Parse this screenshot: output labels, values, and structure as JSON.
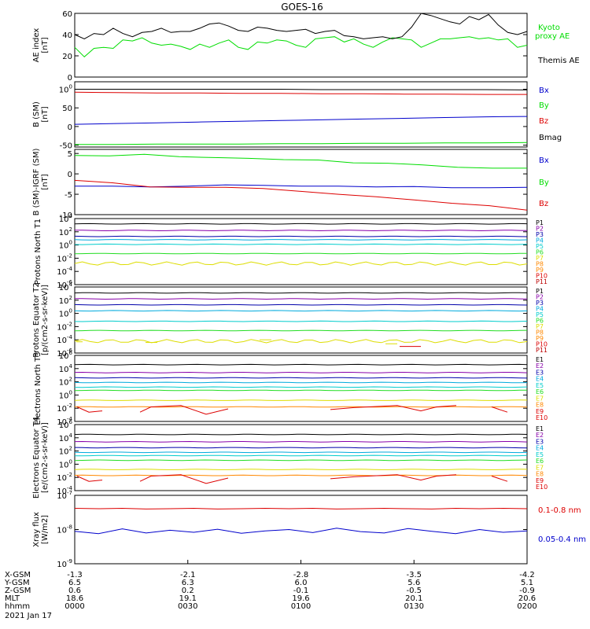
{
  "title": "GOES-16",
  "date": "2021 Jan 17",
  "colors": {
    "black": "#000000",
    "green": "#00dd00",
    "blue": "#0000cc",
    "red": "#dd0000",
    "purple": "#8800aa",
    "navy": "#0000aa",
    "cyan": "#00aadd",
    "aqua": "#00cccc",
    "lime": "#22dd22",
    "yellow": "#dddd00",
    "orange": "#ff8800",
    "darkred": "#bb0000",
    "pink": "#cc0066"
  },
  "chart_data": [
    {
      "type": "line",
      "id": "ae",
      "ylabel": "AE index [nT]",
      "ylim": [
        0,
        60
      ],
      "yticks": [
        "0",
        "20",
        "40",
        "60"
      ],
      "series": [
        {
          "name": "Kyoto proxy AE",
          "values": [
            28,
            19,
            27,
            28,
            27,
            35,
            34,
            37,
            32,
            30,
            31,
            29,
            26,
            31,
            28,
            32,
            35,
            28,
            26,
            33,
            32,
            35,
            34,
            30,
            28,
            36,
            37,
            38,
            33,
            36,
            31,
            28,
            33,
            37,
            36,
            35,
            28,
            32,
            36,
            36,
            37,
            38,
            36,
            37,
            35,
            36,
            28,
            30
          ]
        },
        {
          "name": "Themis AE",
          "values": [
            40,
            36,
            41,
            40,
            46,
            41,
            38,
            42,
            43,
            46,
            42,
            43,
            43,
            46,
            50,
            51,
            48,
            44,
            43,
            47,
            46,
            44,
            43,
            44,
            45,
            41,
            43,
            44,
            39,
            38,
            36,
            37,
            38,
            36,
            38,
            47,
            60,
            58,
            55,
            52,
            50,
            57,
            54,
            59,
            49,
            42,
            40,
            43
          ]
        }
      ]
    },
    {
      "type": "line",
      "id": "bsm",
      "ylabel": "B (SM) [nT]",
      "ylim": [
        -55,
        120
      ],
      "yticks": [
        "-50",
        "0",
        "50",
        "100"
      ],
      "series": [
        {
          "name": "Bx",
          "values": [
            6,
            8,
            10,
            12,
            14,
            16,
            18,
            20,
            22,
            24,
            26,
            27
          ]
        },
        {
          "name": "By",
          "values": [
            -48,
            -48,
            -47,
            -47,
            -47,
            -46,
            -46,
            -45,
            -45,
            -44,
            -44,
            -43
          ]
        },
        {
          "name": "Bz",
          "values": [
            92,
            91,
            90,
            90,
            89,
            89,
            88,
            88,
            87,
            87,
            86,
            86
          ]
        },
        {
          "name": "Bmag",
          "values": [
            100,
            100,
            100,
            100,
            100,
            100,
            99,
            99,
            99,
            99,
            99,
            98
          ]
        }
      ]
    },
    {
      "type": "line",
      "id": "bigrf",
      "ylabel": "B (SM)-IGRF (SM) [nT]",
      "ylim": [
        -10,
        6
      ],
      "yticks": [
        "-10",
        "-5",
        "0",
        "5"
      ],
      "series": [
        {
          "name": "Bx",
          "values": [
            -3,
            -3,
            -3.2,
            -3,
            -2.7,
            -2.8,
            -3,
            -3,
            -3.2,
            -3.1,
            -3.4,
            -3.4,
            -3.3
          ]
        },
        {
          "name": "By",
          "values": [
            4.5,
            4.4,
            4.8,
            4.2,
            4,
            3.8,
            3.5,
            3.4,
            2.7,
            2.6,
            2.2,
            1.6,
            1.4,
            1.4
          ]
        },
        {
          "name": "Bz",
          "values": [
            -1.6,
            -2.2,
            -3.2,
            -3.3,
            -3.3,
            -3.6,
            -4.3,
            -5,
            -5.6,
            -6.4,
            -7.2,
            -7.8,
            -8.9
          ]
        }
      ]
    },
    {
      "type": "line",
      "id": "pn",
      "ylabel": "Protons North T1",
      "ylim": [
        -6,
        4
      ],
      "yticks": [
        "10-6",
        "10-4",
        "10-2",
        "100",
        "102",
        "104"
      ],
      "series": [
        {
          "name": "P1",
          "value": 3.2
        },
        {
          "name": "P2",
          "value": 2.2
        },
        {
          "name": "P3",
          "value": 1.3
        },
        {
          "name": "P4",
          "value": 0.8
        },
        {
          "name": "P5",
          "value": 0.1
        },
        {
          "name": "P6",
          "value": -1.3
        },
        {
          "name": "P7",
          "value": -2.8
        }
      ]
    },
    {
      "type": "line",
      "id": "pe",
      "ylabel": "Protons Equator T2 [p/(cm2-s-sr-keV)]",
      "ylim": [
        -6,
        4
      ],
      "yticks": [
        "10-6",
        "10-4",
        "10-2",
        "100",
        "102",
        "104"
      ],
      "series": [
        {
          "name": "P1",
          "value": 3.1
        },
        {
          "name": "P2",
          "value": 2.2
        },
        {
          "name": "P3",
          "value": 1.3
        },
        {
          "name": "P4",
          "value": 0.4
        },
        {
          "name": "P5",
          "value": -1.2
        },
        {
          "name": "P6",
          "value": -2.6
        },
        {
          "name": "P8",
          "value": -4.2
        }
      ]
    },
    {
      "type": "line",
      "id": "en",
      "ylabel": "Electrons North T3",
      "ylim": [
        -4,
        6
      ],
      "yticks": [
        "10-4",
        "10-2",
        "100",
        "102",
        "104",
        "106"
      ],
      "series": [
        {
          "name": "E1",
          "value": 4.6
        },
        {
          "name": "E2",
          "value": 3.4
        },
        {
          "name": "E3",
          "value": 2.6
        },
        {
          "name": "E4",
          "value": 1.9
        },
        {
          "name": "E5",
          "value": 1.2
        },
        {
          "name": "E6",
          "value": 0.7
        },
        {
          "name": "E7",
          "value": -0.8
        },
        {
          "name": "E8",
          "value": -1.8
        }
      ]
    },
    {
      "type": "line",
      "id": "ee",
      "ylabel": "Electrons Equator T4 [e/(cm2-s-sr-keV)]",
      "ylim": [
        -4,
        6
      ],
      "yticks": [
        "10-4",
        "10-2",
        "100",
        "102",
        "104",
        "106"
      ],
      "series": [
        {
          "name": "E1",
          "value": 4.5
        },
        {
          "name": "E2",
          "value": 3.4
        },
        {
          "name": "E3",
          "value": 2.5
        },
        {
          "name": "E4",
          "value": 1.8
        },
        {
          "name": "E5",
          "value": 1.3
        },
        {
          "name": "E6",
          "value": 0.6
        },
        {
          "name": "E7",
          "value": -0.8
        },
        {
          "name": "E8",
          "value": -1.7
        }
      ]
    },
    {
      "type": "line",
      "id": "xr",
      "ylabel": "Xray flux [W/m2]",
      "ylim": [
        -9,
        -7
      ],
      "yticks": [
        "10-9",
        "10-8",
        "10-7"
      ],
      "series": [
        {
          "name": "0.1-0.8 nm",
          "values": [
            -7.38,
            -7.39,
            -7.38,
            -7.4,
            -7.39,
            -7.38,
            -7.4,
            -7.39,
            -7.38,
            -7.39,
            -7.38,
            -7.4,
            -7.39,
            -7.38,
            -7.39,
            -7.4,
            -7.38,
            -7.39,
            -7.38,
            -7.39
          ]
        },
        {
          "name": "0.05-0.4 nm",
          "values": [
            -8.05,
            -8.12,
            -7.98,
            -8.1,
            -8.02,
            -8.08,
            -7.99,
            -8.11,
            -8.04,
            -8.0,
            -8.09,
            -7.96,
            -8.06,
            -8.1,
            -7.97,
            -8.05,
            -8.12,
            -8.0,
            -8.08,
            -8.04
          ]
        }
      ]
    }
  ],
  "legends": {
    "ae": [
      {
        "text": "Kyoto",
        "color": "#00dd00"
      },
      {
        "text": "proxy AE",
        "color": "#00dd00"
      },
      {
        "text": "Themis AE",
        "color": "#000000"
      }
    ],
    "bsm": [
      {
        "text": "Bx",
        "color": "#0000cc"
      },
      {
        "text": "By",
        "color": "#00dd00"
      },
      {
        "text": "Bz",
        "color": "#dd0000"
      },
      {
        "text": "Bmag",
        "color": "#000000"
      }
    ],
    "bigrf": [
      {
        "text": "Bx",
        "color": "#0000cc"
      },
      {
        "text": "By",
        "color": "#00dd00"
      },
      {
        "text": "Bz",
        "color": "#dd0000"
      }
    ],
    "pn": [
      "P1",
      "P2",
      "P3",
      "P4",
      "P5",
      "P6",
      "P7",
      "P8",
      "P9",
      "P10",
      "P11"
    ],
    "pe": [
      "P1",
      "P2",
      "P3",
      "P4",
      "P5",
      "P6",
      "P7",
      "P8",
      "P9",
      "P10",
      "P11"
    ],
    "en": [
      "E1",
      "E2",
      "E3",
      "E4",
      "E5",
      "E6",
      "E7",
      "E8",
      "E9",
      "E10"
    ],
    "ee": [
      "E1",
      "E2",
      "E3",
      "E4",
      "E5",
      "E6",
      "E7",
      "E8",
      "E9",
      "E10"
    ],
    "xr": [
      {
        "text": "0.1-0.8 nm",
        "color": "#dd0000"
      },
      {
        "text": "0.05-0.4 nm",
        "color": "#0000cc"
      }
    ]
  },
  "footer": {
    "labels": [
      "X-GSM",
      "Y-GSM",
      "Z-GSM",
      "MLT",
      "hhmm"
    ],
    "columns": [
      [
        "-1.3",
        "6.5",
        "0.6",
        "18.6",
        "0000"
      ],
      [
        "-2.1",
        "6.3",
        "0.2",
        "19.1",
        "0030"
      ],
      [
        "-2.8",
        "6.0",
        "-0.1",
        "19.6",
        "0100"
      ],
      [
        "-3.5",
        "5.6",
        "-0.5",
        "20.1",
        "0130"
      ],
      [
        "-4.2",
        "5.1",
        "-0.9",
        "20.6",
        "0200"
      ]
    ]
  }
}
